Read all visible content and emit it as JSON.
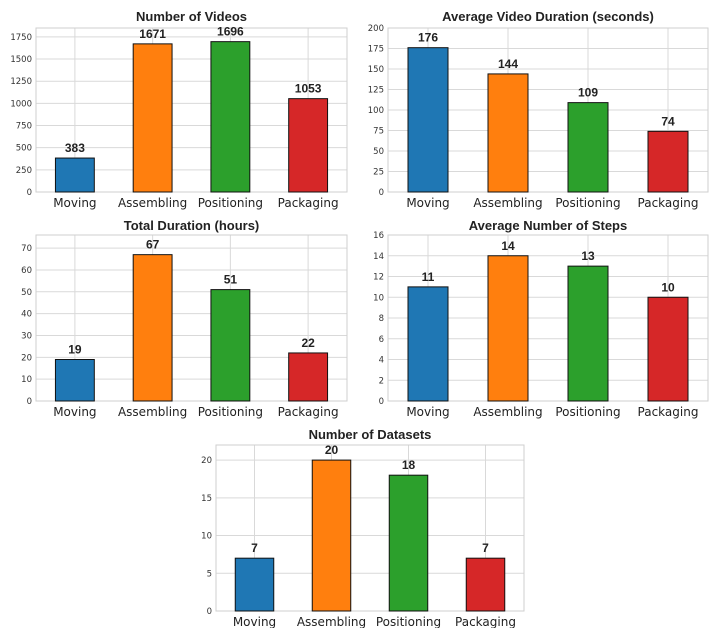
{
  "chart_data": [
    {
      "type": "bar",
      "title": "Number of Videos",
      "categories": [
        "Moving",
        "Assembling",
        "Positioning",
        "Packaging"
      ],
      "values": [
        383,
        1671,
        1696,
        1053
      ],
      "value_labels": [
        "383",
        "1671",
        "1696",
        "1053"
      ],
      "ylim": [
        0,
        1850
      ],
      "yticks": [
        0,
        250,
        500,
        750,
        1000,
        1250,
        1500,
        1750
      ],
      "grid": true
    },
    {
      "type": "bar",
      "title": "Average Video Duration (seconds)",
      "categories": [
        "Moving",
        "Assembling",
        "Positioning",
        "Packaging"
      ],
      "values": [
        176,
        144,
        109,
        74
      ],
      "value_labels": [
        "176",
        "144",
        "109",
        "74"
      ],
      "ylim": [
        0,
        200
      ],
      "yticks": [
        0,
        25,
        50,
        75,
        100,
        125,
        150,
        175,
        200
      ],
      "grid": true
    },
    {
      "type": "bar",
      "title": "Total Duration (hours)",
      "categories": [
        "Moving",
        "Assembling",
        "Positioning",
        "Packaging"
      ],
      "values": [
        19,
        67,
        51,
        22
      ],
      "value_labels": [
        "19",
        "67",
        "51",
        "22"
      ],
      "ylim": [
        0,
        76
      ],
      "yticks": [
        0,
        10,
        20,
        30,
        40,
        50,
        60,
        70
      ],
      "grid": true
    },
    {
      "type": "bar",
      "title": "Average Number of Steps",
      "categories": [
        "Moving",
        "Assembling",
        "Positioning",
        "Packaging"
      ],
      "values": [
        11,
        14,
        13,
        10
      ],
      "value_labels": [
        "11",
        "14",
        "13",
        "10"
      ],
      "ylim": [
        0,
        16
      ],
      "yticks": [
        0,
        2,
        4,
        6,
        8,
        10,
        12,
        14,
        16
      ],
      "grid": true
    },
    {
      "type": "bar",
      "title": "Number of Datasets",
      "categories": [
        "Moving",
        "Assembling",
        "Positioning",
        "Packaging"
      ],
      "values": [
        7,
        20,
        18,
        7
      ],
      "value_labels": [
        "7",
        "20",
        "18",
        "7"
      ],
      "ylim": [
        0,
        22
      ],
      "yticks": [
        0,
        5,
        10,
        15,
        20
      ],
      "grid": true
    }
  ],
  "colors": [
    "#1f77b4",
    "#ff7f0e",
    "#2ca02c",
    "#d62728"
  ]
}
